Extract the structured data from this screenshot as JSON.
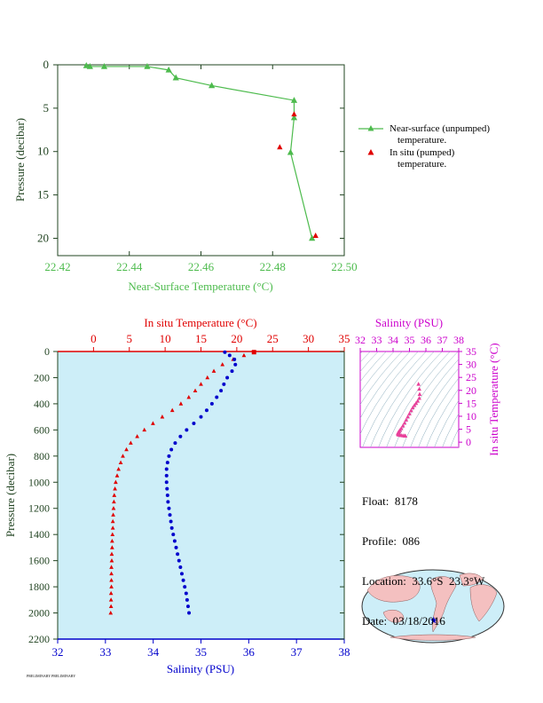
{
  "colors": {
    "near_surface": "#4dbb4d",
    "in_situ": "#e00000",
    "salinity": "#0000cc",
    "salinity_axis": "#cc00cc",
    "ts_points": "#e8409a",
    "profile_bg": "#cdeef8",
    "axis_dark": "#224422"
  },
  "chart_data": [
    {
      "type": "line",
      "title": "",
      "xlabel": "Near-Surface Temperature (°C)",
      "ylabel": "Pressure (decibar)",
      "xlim": [
        22.42,
        22.5
      ],
      "ylim": [
        0,
        22
      ],
      "y_inverted": true,
      "xticks": [
        "22.42",
        "22.44",
        "22.46",
        "22.48",
        "22.50"
      ],
      "yticks": [
        "0",
        "5",
        "10",
        "15",
        "20"
      ],
      "legend_position": "right",
      "series": [
        {
          "name": "Near-surface (unpumped) temperature.",
          "x": [
            22.428,
            22.429,
            22.433,
            22.445,
            22.451,
            22.453,
            22.463,
            22.486,
            22.486,
            22.485,
            22.491
          ],
          "y": [
            0.1,
            0.2,
            0.2,
            0.2,
            0.6,
            1.5,
            2.4,
            4.1,
            6.1,
            10.1,
            20.0
          ]
        },
        {
          "name": "In situ (pumped) temperature.",
          "x": [
            22.486,
            22.482,
            22.492
          ],
          "y": [
            5.7,
            9.5,
            19.7
          ]
        }
      ]
    },
    {
      "type": "line",
      "title": "",
      "xlabel_top": "In situ Temperature (°C)",
      "xlabel_bottom": "Salinity (PSU)",
      "ylabel": "Pressure (decibar)",
      "temperature_lim": [
        -5,
        35
      ],
      "salinity_lim": [
        32,
        38
      ],
      "ylim": [
        0,
        2200
      ],
      "y_inverted": true,
      "temperature_ticks": [
        "0",
        "5",
        "10",
        "15",
        "20",
        "25",
        "30",
        "35"
      ],
      "salinity_ticks": [
        "32",
        "33",
        "34",
        "35",
        "36",
        "37",
        "38"
      ],
      "pressure_ticks": [
        "0",
        "200",
        "400",
        "600",
        "800",
        "1000",
        "1200",
        "1400",
        "1600",
        "1800",
        "2000",
        "2200"
      ],
      "series": [
        {
          "name": "In situ Temperature",
          "pressure": [
            5,
            30,
            60,
            100,
            150,
            200,
            250,
            300,
            350,
            400,
            450,
            500,
            550,
            600,
            650,
            700,
            750,
            800,
            850,
            900,
            950,
            1000,
            1050,
            1100,
            1150,
            1200,
            1250,
            1300,
            1350,
            1400,
            1450,
            1500,
            1550,
            1600,
            1650,
            1700,
            1750,
            1800,
            1850,
            1900,
            1950,
            2000
          ],
          "values": [
            22.4,
            21.0,
            19.5,
            18.0,
            16.8,
            15.9,
            15.0,
            14.2,
            13.3,
            12.2,
            11.0,
            9.6,
            8.3,
            7.1,
            6.1,
            5.2,
            4.6,
            4.1,
            3.8,
            3.5,
            3.3,
            3.1,
            3.0,
            2.9,
            2.85,
            2.8,
            2.75,
            2.7,
            2.7,
            2.65,
            2.6,
            2.6,
            2.55,
            2.55,
            2.5,
            2.5,
            2.5,
            2.5,
            2.45,
            2.45,
            2.45,
            2.4
          ]
        },
        {
          "name": "Salinity",
          "pressure": [
            5,
            30,
            60,
            100,
            150,
            200,
            250,
            300,
            350,
            400,
            450,
            500,
            550,
            600,
            650,
            700,
            750,
            800,
            850,
            900,
            950,
            1000,
            1050,
            1100,
            1150,
            1200,
            1250,
            1300,
            1350,
            1400,
            1450,
            1500,
            1550,
            1600,
            1650,
            1700,
            1750,
            1800,
            1850,
            1900,
            1950,
            2000
          ],
          "values": [
            35.5,
            35.6,
            35.7,
            35.72,
            35.65,
            35.55,
            35.48,
            35.42,
            35.33,
            35.23,
            35.12,
            35.0,
            34.85,
            34.7,
            34.57,
            34.46,
            34.38,
            34.33,
            34.3,
            34.28,
            34.28,
            34.28,
            34.29,
            34.3,
            34.31,
            34.33,
            34.35,
            34.37,
            34.39,
            34.42,
            34.45,
            34.48,
            34.51,
            34.54,
            34.57,
            34.6,
            34.63,
            34.66,
            34.69,
            34.71,
            34.73,
            34.75
          ]
        }
      ]
    },
    {
      "type": "scatter",
      "title": "",
      "xlabel": "Salinity (PSU)",
      "ylabel": "In situ Temperature (°C)",
      "xlim": [
        32,
        38
      ],
      "ylim": [
        -2,
        35
      ],
      "xticks": [
        "32",
        "33",
        "34",
        "35",
        "36",
        "37",
        "38"
      ],
      "yticks": [
        "0",
        "5",
        "10",
        "15",
        "20",
        "25",
        "30",
        "35"
      ],
      "grid": "density contours",
      "series": [
        {
          "name": "",
          "salinity": [
            35.55,
            35.6,
            35.62,
            35.6,
            35.5,
            35.4,
            35.3,
            35.2,
            35.1,
            35.0,
            34.9,
            34.8,
            34.7,
            34.6,
            34.5,
            34.42,
            34.36,
            34.32,
            34.3,
            34.3,
            34.32,
            34.36,
            34.42,
            34.5,
            34.6,
            34.7,
            34.75
          ],
          "temperature": [
            22.4,
            20.5,
            18.5,
            17.0,
            15.9,
            15.0,
            14.2,
            13.3,
            12.2,
            11.0,
            9.8,
            8.6,
            7.4,
            6.3,
            5.3,
            4.6,
            4.1,
            3.7,
            3.4,
            3.1,
            2.9,
            2.8,
            2.7,
            2.6,
            2.5,
            2.45,
            2.4
          ]
        }
      ]
    }
  ],
  "info": {
    "float": "Float:  8178",
    "profile": "Profile:  086",
    "location": "Location:  33.6°S  23.3°W",
    "date": "Date:  03/18/2016"
  },
  "map": {
    "float_lon": -23.3,
    "float_lat": -33.6
  },
  "footer": "PRELIMINARY PRELIMINARY"
}
